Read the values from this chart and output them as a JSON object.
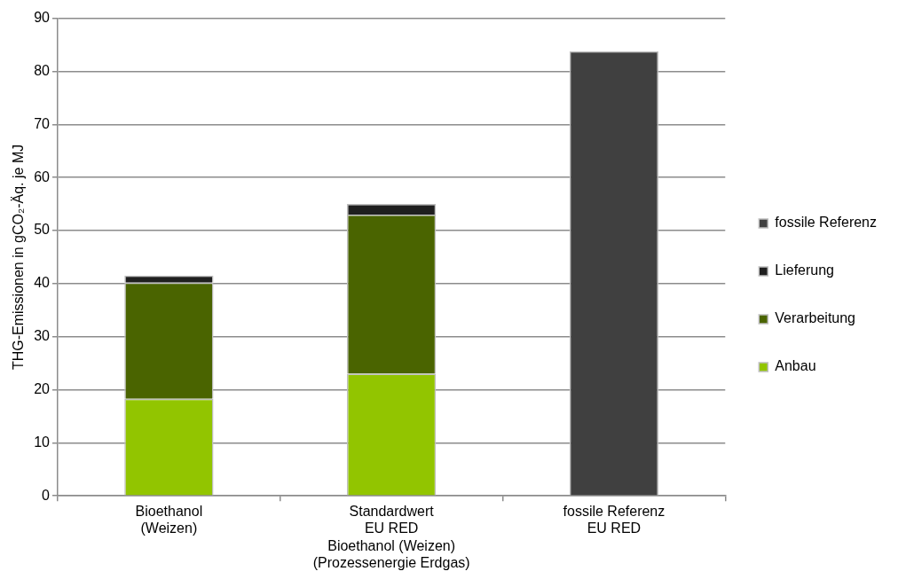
{
  "chart_data": {
    "type": "bar",
    "stacked": true,
    "ylabel": "THG-Emissionen in gCO₂-Äq. je MJ",
    "categories": [
      "Bioethanol\n(Weizen)",
      "Standardwert\nEU RED\nBioethanol (Weizen)\n(Prozessenergie Erdgas)",
      "fossile Referenz\nEU RED"
    ],
    "series": [
      {
        "name": "Anbau",
        "color": "#92c500",
        "values": [
          18.3,
          23,
          null
        ]
      },
      {
        "name": "Verarbeitung",
        "color": "#4a6400",
        "values": [
          21.9,
          30,
          null
        ]
      },
      {
        "name": "Lieferung",
        "color": "#1f1f1f",
        "values": [
          1.3,
          2,
          null
        ]
      },
      {
        "name": "fossile Referenz",
        "color": "#404040",
        "values": [
          null,
          null,
          83.8
        ]
      }
    ],
    "ylim": [
      0,
      90
    ],
    "yticks": [
      0,
      10,
      20,
      30,
      40,
      50,
      60,
      70,
      80,
      90
    ],
    "grid": "y",
    "legend": "right"
  }
}
